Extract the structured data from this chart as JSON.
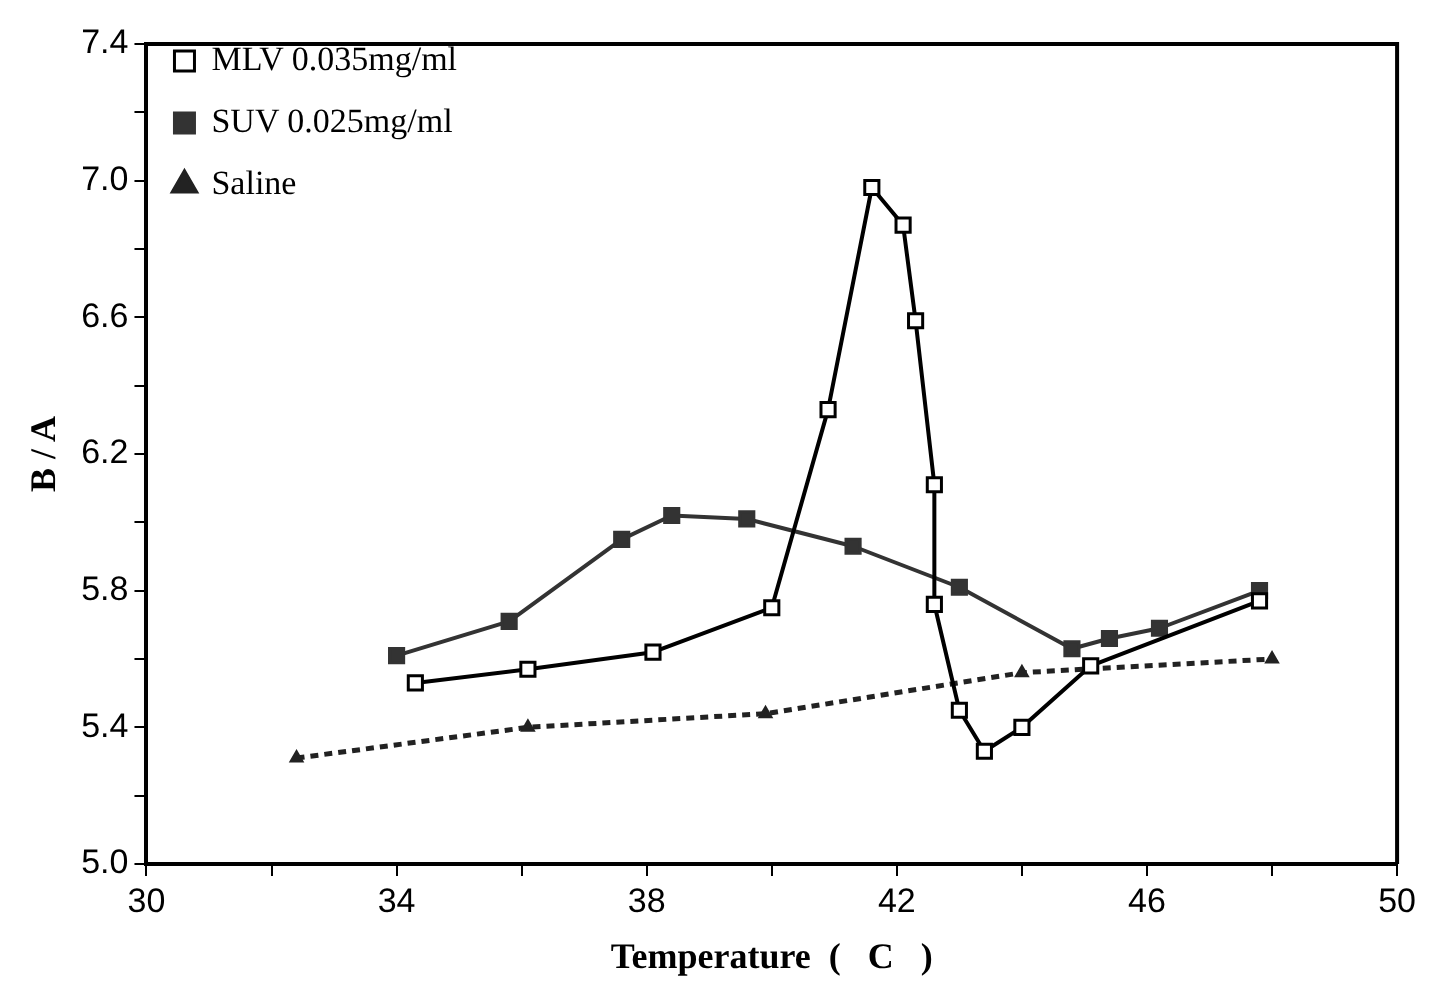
{
  "chart_data": {
    "type": "line",
    "xlabel": "Temperature  (   C   )",
    "ylabel": "B / A",
    "xlim": [
      30,
      50
    ],
    "xticks": [
      30,
      {
        "value": 32,
        "label": null
      },
      34,
      {
        "value": 36,
        "label": null
      },
      38,
      {
        "value": 40,
        "label": null
      },
      42,
      {
        "value": 44,
        "label": null
      },
      46,
      {
        "value": 48,
        "label": null
      },
      50
    ],
    "ylim": [
      5.0,
      7.4
    ],
    "yticks": [
      "5.0",
      {
        "value": 5.2,
        "label": null
      },
      5.4,
      {
        "value": 5.6,
        "label": null
      },
      5.8,
      {
        "value": 6.0,
        "label": null
      },
      6.2,
      {
        "value": 6.4,
        "label": null
      },
      6.6,
      {
        "value": 6.8,
        "label": null
      },
      "7.0",
      {
        "value": 7.2,
        "label": null
      },
      7.4
    ],
    "grid": false,
    "legend": "top left",
    "series": [
      {
        "name": "MLV 0.035mg/ml",
        "color": "#000000",
        "marker": "square",
        "line_style": "solid",
        "x": [
          34.3,
          36.1,
          38.1,
          40.0,
          40.9,
          41.6,
          42.1,
          42.3,
          42.6,
          42.6,
          43.0,
          43.4,
          44.0,
          45.1,
          47.8
        ],
        "values": [
          5.53,
          5.57,
          5.62,
          5.75,
          6.33,
          6.98,
          6.87,
          6.59,
          6.11,
          5.76,
          5.45,
          5.33,
          5.4,
          5.58,
          5.77
        ]
      },
      {
        "name": "SUV 0.025mg/ml",
        "color": "#333333",
        "marker": "square",
        "line_style": "solid",
        "x": [
          34.0,
          35.8,
          37.6,
          38.4,
          39.6,
          41.3,
          43.0,
          44.8,
          45.4,
          46.2,
          47.8
        ],
        "values": [
          5.61,
          5.71,
          5.95,
          6.02,
          6.01,
          5.93,
          5.81,
          5.63,
          5.66,
          5.69,
          5.8
        ]
      },
      {
        "name": "Saline",
        "color": "#222222",
        "marker": "triangle",
        "line_style": "dashed",
        "x": [
          32.4,
          36.1,
          39.9,
          44.0,
          48.0
        ],
        "values": [
          5.31,
          5.4,
          5.44,
          5.56,
          5.6
        ]
      }
    ]
  }
}
